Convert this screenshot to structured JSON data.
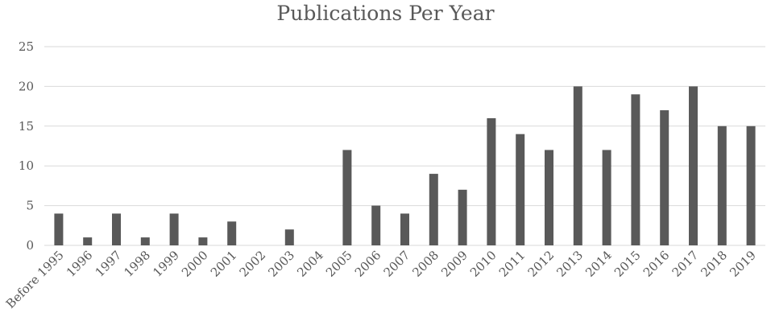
{
  "chart_data": {
    "type": "bar",
    "title": "Publications Per Year",
    "xlabel": "",
    "ylabel": "",
    "categories": [
      "Before 1995",
      "1996",
      "1997",
      "1998",
      "1999",
      "2000",
      "2001",
      "2002",
      "2003",
      "2004",
      "2005",
      "2006",
      "2007",
      "2008",
      "2009",
      "2010",
      "2011",
      "2012",
      "2013",
      "2014",
      "2015",
      "2016",
      "2017",
      "2018",
      "2019"
    ],
    "values": [
      4,
      1,
      4,
      1,
      4,
      1,
      3,
      0,
      2,
      0,
      12,
      5,
      4,
      9,
      7,
      16,
      14,
      12,
      20,
      12,
      19,
      17,
      20,
      15,
      15
    ],
    "ylim": [
      0,
      25
    ],
    "yticks": [
      0,
      5,
      10,
      15,
      20,
      25
    ],
    "grid": true,
    "legend": "none",
    "bar_color": "#595959",
    "grid_color": "#d9d9d9",
    "text_color": "#595959"
  }
}
